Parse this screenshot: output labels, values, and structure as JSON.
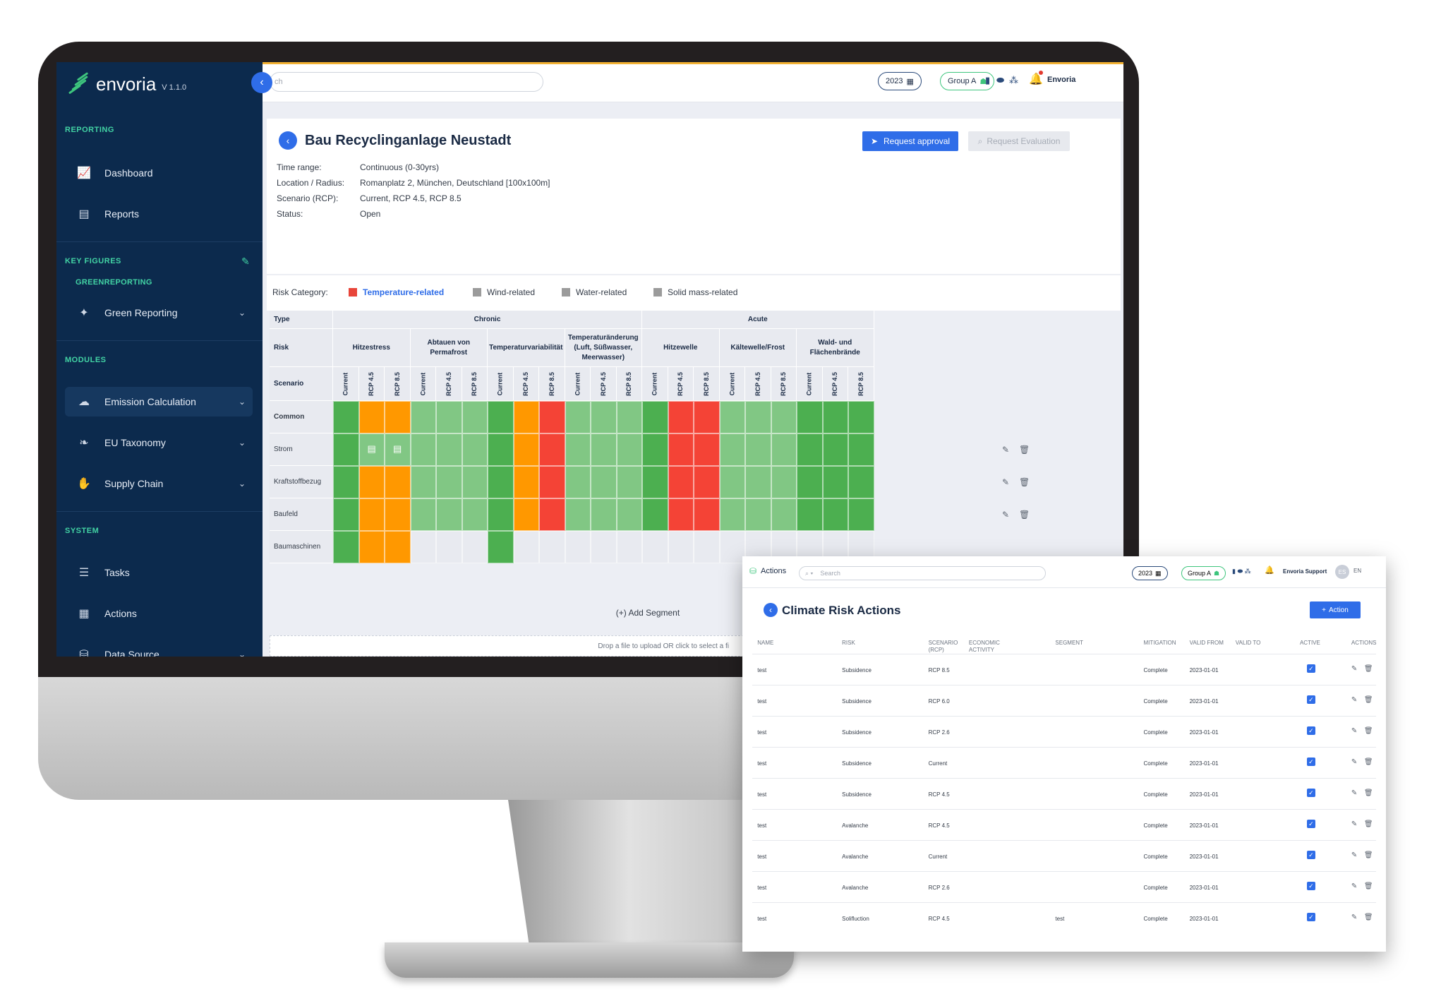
{
  "app": {
    "name": "envoria",
    "version": "V 1.1.0"
  },
  "sidebar": {
    "sections": {
      "reporting": "REPORTING",
      "key_figures": "KEY FIGURES",
      "greenreporting": "GREENREPORTING",
      "modules": "MODULES",
      "system": "SYSTEM"
    },
    "items": [
      {
        "label": "Dashboard",
        "icon": "chart-line-icon"
      },
      {
        "label": "Reports",
        "icon": "document-icon"
      },
      {
        "label": "Green Reporting",
        "icon": "puzzle-icon"
      },
      {
        "label": "Emission Calculation",
        "icon": "cloud-co2-icon"
      },
      {
        "label": "EU Taxonomy",
        "icon": "leaf-icon"
      },
      {
        "label": "Supply Chain",
        "icon": "handshake-icon"
      },
      {
        "label": "Tasks",
        "icon": "checklist-icon"
      },
      {
        "label": "Actions",
        "icon": "table-icon"
      },
      {
        "label": "Data Source",
        "icon": "database-icon"
      }
    ]
  },
  "topbar": {
    "search_placeholder": "ch",
    "year": "2023",
    "group": "Group A",
    "user": "Envoria"
  },
  "project": {
    "title": "Bau Recyclinganlage Neustadt",
    "request_approval": "Request approval",
    "request_evaluation": "Request Evaluation",
    "info": [
      {
        "label": "Time range:",
        "value": "Continuous (0-30yrs)"
      },
      {
        "label": "Location / Radius:",
        "value": "Romanplatz 2, München, Deutschland [100x100m]"
      },
      {
        "label": "Scenario (RCP):",
        "value": "Current, RCP 4.5, RCP 8.5"
      },
      {
        "label": "Status:",
        "value": "Open"
      }
    ]
  },
  "legend": {
    "label": "Risk Category:",
    "items": [
      {
        "label": "Temperature-related",
        "color": "#e8453a",
        "active": true
      },
      {
        "label": "Wind-related",
        "color": "#9b9b9b",
        "active": false
      },
      {
        "label": "Water-related",
        "color": "#9b9b9b",
        "active": false
      },
      {
        "label": "Solid mass-related",
        "color": "#9b9b9b",
        "active": false
      }
    ]
  },
  "matrix": {
    "type_label": "Type",
    "risk_label": "Risk",
    "scenario_label": "Scenario",
    "chronic_label": "Chronic",
    "acute_label": "Acute",
    "risks": [
      "Hitzestress",
      "Abtauen von Permafrost",
      "Temperaturvariabilität",
      "Temperaturänderung (Luft, Süßwasser, Meerwasser)",
      "Hitzewelle",
      "Kältewelle/Frost",
      "Wald- und Flächenbrände"
    ],
    "scenarios": [
      "Current",
      "RCP 4.5",
      "RCP 8.5"
    ],
    "colors": {
      "D": "#4caf50",
      "L": "#81c784",
      "O": "#ff9800",
      "R": "#f44336",
      "E": "#e8eaf0"
    },
    "rows": [
      {
        "label": "Common",
        "bold": true,
        "cells": "DOOLLLDORLLLDRRLLLDDD"
      },
      {
        "label": "Strom",
        "bold": false,
        "cells": "DLLLLLDORLLLDRRLLLDDD"
      },
      {
        "label": "Kraftstoffbezug",
        "bold": false,
        "cells": "DOOLLLDORLLLDRRLLLDDD"
      },
      {
        "label": "Baufeld",
        "bold": false,
        "cells": "DOOLLLDORLLLDRRLLLDDD"
      },
      {
        "label": "Baumaschinen",
        "bold": false,
        "cells": "DOOEEEDEEEEEEEEEEEEEE"
      }
    ],
    "add_segment": "(+) Add Segment",
    "dropzone": "Drop a file to upload OR click to select a fi"
  },
  "overlay": {
    "top_label": "Actions",
    "search_placeholder": "Search",
    "year": "2023",
    "group": "Group A",
    "user": "Envoria Support",
    "avatar": "ES",
    "lang": "EN",
    "title": "Climate Risk Actions",
    "add_button": "Action",
    "columns": [
      "NAME",
      "RISK",
      "SCENARIO (RCP)",
      "ECONOMIC ACTIVITY",
      "SEGMENT",
      "MITIGATION",
      "VALID FROM",
      "VALID TO",
      "ACTIVE",
      "ACTIONS"
    ],
    "rows": [
      {
        "name": "test",
        "risk": "Subsidence",
        "scenario": "RCP 8.5",
        "segment": "",
        "mitigation": "Complete",
        "valid_from": "2023-01-01"
      },
      {
        "name": "test",
        "risk": "Subsidence",
        "scenario": "RCP 6.0",
        "segment": "",
        "mitigation": "Complete",
        "valid_from": "2023-01-01"
      },
      {
        "name": "test",
        "risk": "Subsidence",
        "scenario": "RCP 2.6",
        "segment": "",
        "mitigation": "Complete",
        "valid_from": "2023-01-01"
      },
      {
        "name": "test",
        "risk": "Subsidence",
        "scenario": "Current",
        "segment": "",
        "mitigation": "Complete",
        "valid_from": "2023-01-01"
      },
      {
        "name": "test",
        "risk": "Subsidence",
        "scenario": "RCP 4.5",
        "segment": "",
        "mitigation": "Complete",
        "valid_from": "2023-01-01"
      },
      {
        "name": "test",
        "risk": "Avalanche",
        "scenario": "RCP 4.5",
        "segment": "",
        "mitigation": "Complete",
        "valid_from": "2023-01-01"
      },
      {
        "name": "test",
        "risk": "Avalanche",
        "scenario": "Current",
        "segment": "",
        "mitigation": "Complete",
        "valid_from": "2023-01-01"
      },
      {
        "name": "test",
        "risk": "Avalanche",
        "scenario": "RCP 2.6",
        "segment": "",
        "mitigation": "Complete",
        "valid_from": "2023-01-01"
      },
      {
        "name": "test",
        "risk": "Solifluction",
        "scenario": "RCP 4.5",
        "segment": "test",
        "mitigation": "Complete",
        "valid_from": "2023-01-01"
      }
    ]
  }
}
